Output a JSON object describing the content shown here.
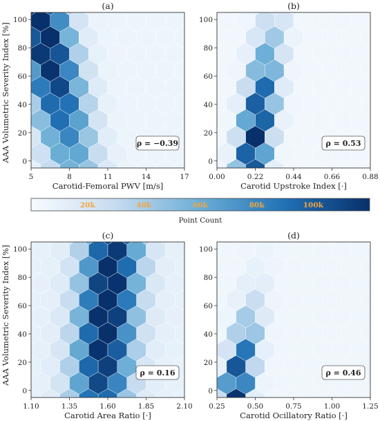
{
  "figure": {
    "ylabel": "AAA Volumetric Severity Index [%]",
    "colorbar": {
      "label": "Point Count",
      "ticks": [
        "20k",
        "40k",
        "60k",
        "80k",
        "100k"
      ],
      "tick_values": [
        20000,
        40000,
        60000,
        80000,
        100000
      ],
      "max": 120000,
      "colormap": [
        "#f7fbff",
        "#c6dbef",
        "#6baed6",
        "#2171b5",
        "#08306b"
      ],
      "tick_color": "#f0a640"
    }
  },
  "chart_data": [
    {
      "type": "heatmap",
      "title": "(a)",
      "xlabel": "Carotid-Femoral PWV [m/s]",
      "ylabel": "AAA Volumetric Severity Index [%]",
      "xlim": [
        5,
        17
      ],
      "ylim": [
        -5,
        105
      ],
      "xticks": [
        5,
        8,
        11,
        14,
        17
      ],
      "xticklabels": [
        "5",
        "8",
        "11",
        "14",
        "17"
      ],
      "yticks": [
        0,
        20,
        40,
        60,
        80,
        100
      ],
      "yticklabels": [
        "0",
        "20",
        "40",
        "60",
        "80",
        "100"
      ],
      "annotation": "ρ = −0.39",
      "trend": {
        "x0": 8.2,
        "slope": -0.025,
        "sx": 1.5,
        "peak_y": 90,
        "sy": 75,
        "base": 0.05
      },
      "hexbin_nx": 8
    },
    {
      "type": "heatmap",
      "title": "(b)",
      "xlabel": "Carotid Upstroke Index [·]",
      "ylabel": "",
      "xlim": [
        0.0,
        0.88
      ],
      "ylim": [
        -5,
        105
      ],
      "xticks": [
        0.0,
        0.22,
        0.44,
        0.66,
        0.88
      ],
      "xticklabels": [
        "0.00",
        "0.22",
        "0.44",
        "0.66",
        "0.88"
      ],
      "yticks": [
        0,
        20,
        40,
        60,
        80,
        100
      ],
      "yticklabels": [
        "0",
        "20",
        "40",
        "60",
        "80",
        "100"
      ],
      "annotation": "ρ = 0.53",
      "trend": {
        "x0": 0.2,
        "slope": 0.0012,
        "sx": 0.06,
        "peak_y": 15,
        "sy": 50,
        "base": 0.03
      },
      "hexbin_nx": 8
    },
    {
      "type": "heatmap",
      "title": "(c)",
      "xlabel": "Carotid Area Ratio [·]",
      "ylabel": "AAA Volumetric Severity Index [%]",
      "xlim": [
        1.1,
        2.1
      ],
      "ylim": [
        -5,
        105
      ],
      "xticks": [
        1.1,
        1.35,
        1.6,
        1.85,
        2.1
      ],
      "xticklabels": [
        "1.10",
        "1.35",
        "1.60",
        "1.85",
        "2.10"
      ],
      "yticks": [
        0,
        20,
        40,
        60,
        80,
        100
      ],
      "yticklabels": [
        "0",
        "20",
        "40",
        "60",
        "80",
        "100"
      ],
      "annotation": "ρ = 0.16",
      "trend": {
        "x0": 1.55,
        "slope": 0.0008,
        "sx": 0.13,
        "peak_y": 60,
        "sy": 90,
        "base": 0.08
      },
      "hexbin_nx": 8
    },
    {
      "type": "heatmap",
      "title": "(d)",
      "xlabel": "Carotid Ocillatory Ratio [·]",
      "ylabel": "",
      "xlim": [
        0.25,
        1.25
      ],
      "ylim": [
        -5,
        105
      ],
      "xticks": [
        0.25,
        0.5,
        0.75,
        1.0,
        1.25
      ],
      "xticklabels": [
        "0.25",
        "0.50",
        "0.75",
        "1.00",
        "1.25"
      ],
      "yticks": [
        0,
        20,
        40,
        60,
        80,
        100
      ],
      "yticklabels": [
        "0",
        "20",
        "40",
        "60",
        "80",
        "100"
      ],
      "annotation": "ρ = 0.46",
      "trend": {
        "x0": 0.37,
        "slope": 0.0018,
        "sx": 0.06,
        "peak_y": 0,
        "sy": 35,
        "base": 0.04
      },
      "hexbin_nx": 8
    }
  ]
}
